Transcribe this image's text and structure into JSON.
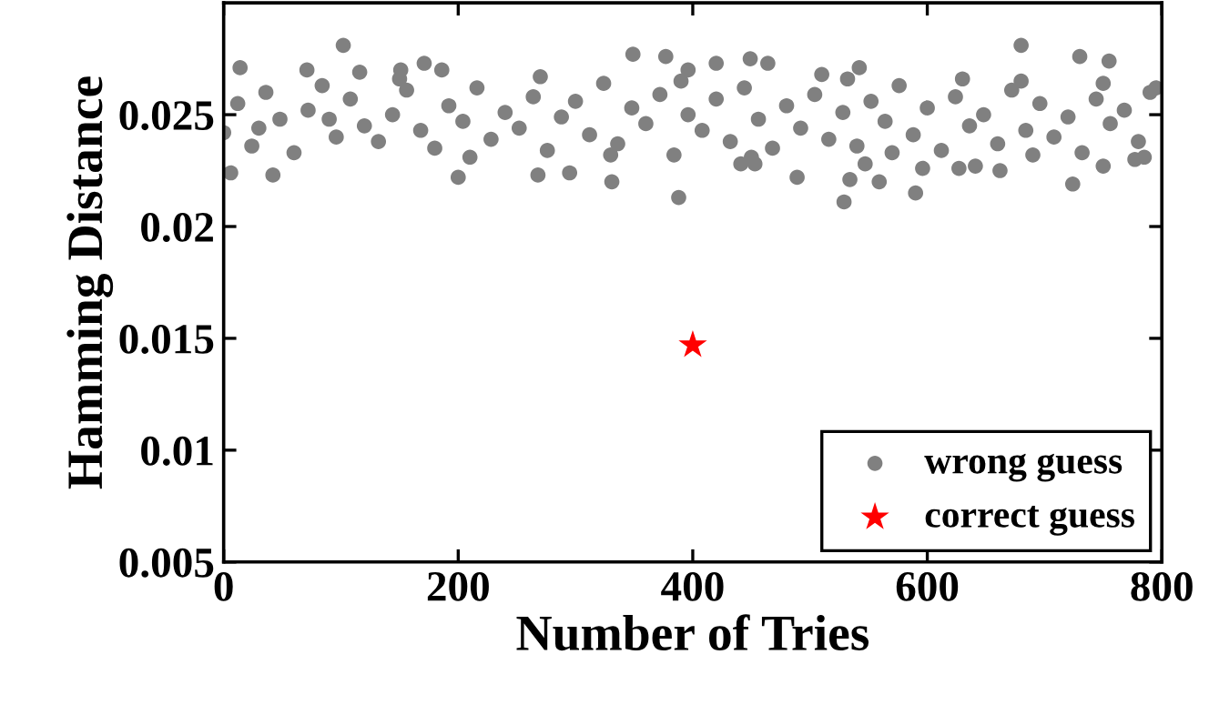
{
  "chart_data": {
    "type": "scatter",
    "xlabel": "Number of Tries",
    "ylabel": "Hamming Distance",
    "xlim": [
      0,
      800
    ],
    "xticks": [
      0,
      200,
      400,
      600,
      800
    ],
    "ylim": [
      0.005,
      0.03
    ],
    "yticks": [
      0.005,
      0.01,
      0.015,
      0.02,
      0.025
    ],
    "legend": "bottom right",
    "grid": false,
    "series": [
      {
        "name": "wrong guess",
        "color": "#808080",
        "marker": "circle",
        "x": [
          102,
          14,
          349,
          377,
          388,
          331,
          42,
          200,
          268,
          295,
          6,
          171,
          186,
          151,
          71,
          420,
          116,
          396,
          680,
          730,
          755,
          449,
          464,
          542,
          532,
          680,
          529,
          590,
          724,
          559,
          489,
          534,
          441,
          453,
          627,
          641,
          662,
          596,
          750,
          777,
          547,
          0,
          12,
          24,
          36,
          48,
          60,
          72,
          84,
          96,
          108,
          120,
          132,
          144,
          156,
          168,
          180,
          192,
          204,
          216,
          228,
          240,
          252,
          264,
          276,
          288,
          300,
          312,
          324,
          336,
          348,
          360,
          372,
          384,
          396,
          408,
          420,
          432,
          444,
          456,
          468,
          480,
          492,
          504,
          516,
          528,
          540,
          552,
          564,
          576,
          588,
          600,
          612,
          624,
          636,
          648,
          660,
          672,
          684,
          696,
          708,
          720,
          732,
          744,
          756,
          768,
          780,
          790,
          30,
          90,
          150,
          210,
          270,
          330,
          390,
          450,
          510,
          570,
          630,
          690,
          750,
          785,
          795
        ],
        "values": [
          0.0281,
          0.0271,
          0.0277,
          0.0276,
          0.0213,
          0.022,
          0.0223,
          0.0222,
          0.0223,
          0.0224,
          0.0224,
          0.0273,
          0.027,
          0.027,
          0.027,
          0.0273,
          0.0269,
          0.027,
          0.0281,
          0.0276,
          0.0274,
          0.0275,
          0.0273,
          0.0271,
          0.0266,
          0.0265,
          0.0211,
          0.0215,
          0.0219,
          0.022,
          0.0222,
          0.0221,
          0.0228,
          0.0228,
          0.0226,
          0.0227,
          0.0225,
          0.0226,
          0.0227,
          0.023,
          0.0228,
          0.0242,
          0.0255,
          0.0236,
          0.026,
          0.0248,
          0.0233,
          0.0252,
          0.0263,
          0.024,
          0.0257,
          0.0245,
          0.0238,
          0.025,
          0.0261,
          0.0243,
          0.0235,
          0.0254,
          0.0247,
          0.0262,
          0.0239,
          0.0251,
          0.0244,
          0.0258,
          0.0234,
          0.0249,
          0.0256,
          0.0241,
          0.0264,
          0.0237,
          0.0253,
          0.0246,
          0.0259,
          0.0232,
          0.025,
          0.0243,
          0.0257,
          0.0238,
          0.0262,
          0.0248,
          0.0235,
          0.0254,
          0.0244,
          0.0259,
          0.0239,
          0.0251,
          0.0236,
          0.0256,
          0.0247,
          0.0263,
          0.0241,
          0.0253,
          0.0234,
          0.0258,
          0.0245,
          0.025,
          0.0237,
          0.0261,
          0.0243,
          0.0255,
          0.024,
          0.0249,
          0.0233,
          0.0257,
          0.0246,
          0.0252,
          0.0238,
          0.026,
          0.0244,
          0.0248,
          0.0266,
          0.0231,
          0.0267,
          0.0232,
          0.0265,
          0.0231,
          0.0268,
          0.0233,
          0.0266,
          0.0232,
          0.0264,
          0.0231,
          0.0262
        ]
      },
      {
        "name": "correct guess",
        "color": "#ff0000",
        "marker": "star",
        "x": [
          400
        ],
        "values": [
          0.0147
        ]
      }
    ]
  }
}
